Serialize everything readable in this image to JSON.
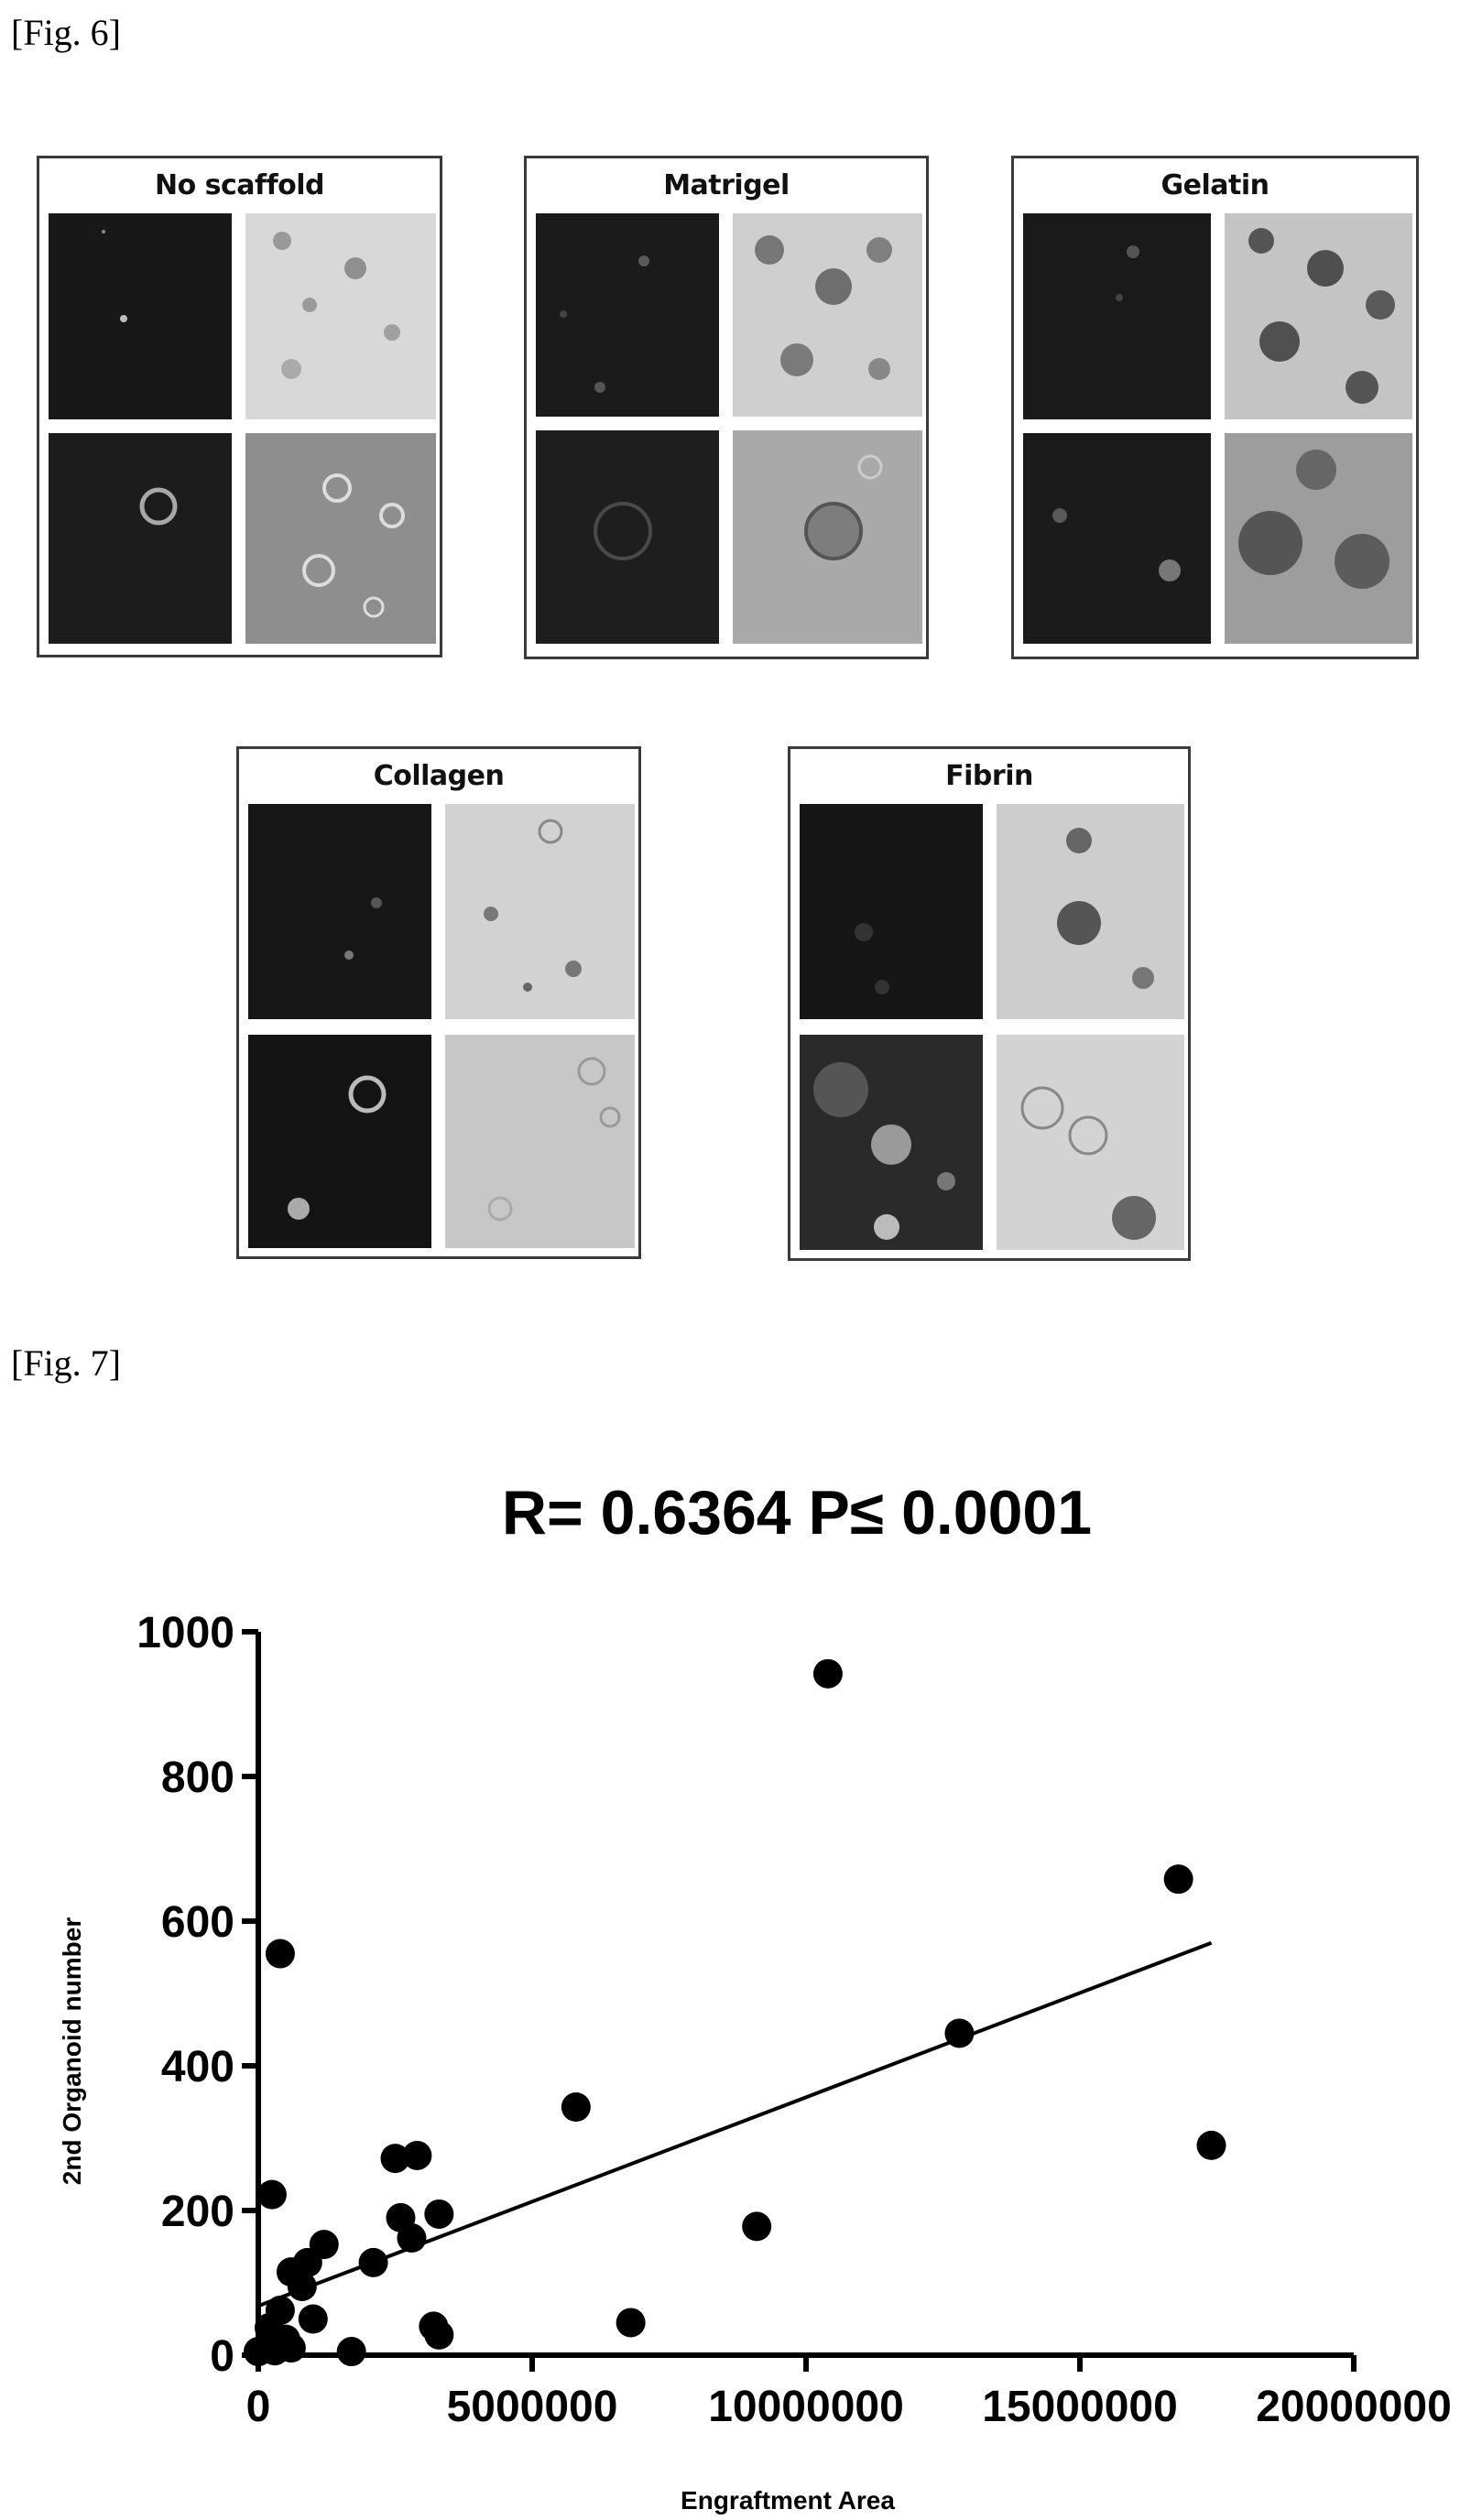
{
  "fig6": {
    "label": "[Fig. 6]",
    "panels": [
      {
        "title": "No scaffold"
      },
      {
        "title": "Matrigel"
      },
      {
        "title": "Gelatin"
      },
      {
        "title": "Collagen"
      },
      {
        "title": "Fibrin"
      }
    ]
  },
  "fig7": {
    "label": "[Fig. 7]"
  },
  "chart_data": {
    "type": "scatter",
    "title": "R= 0.6364  P≤ 0.0001",
    "xlabel": "Engraftment Area",
    "ylabel": "2nd Organoid number",
    "xlim": [
      0,
      20000000
    ],
    "ylim": [
      0,
      1000
    ],
    "xticks": [
      0,
      5000000,
      10000000,
      15000000,
      20000000
    ],
    "yticks": [
      0,
      200,
      400,
      600,
      800,
      1000
    ],
    "grid": false,
    "points": [
      {
        "x": 10400000,
        "y": 942
      },
      {
        "x": 16800000,
        "y": 658
      },
      {
        "x": 400000,
        "y": 555
      },
      {
        "x": 12800000,
        "y": 445
      },
      {
        "x": 5800000,
        "y": 343
      },
      {
        "x": 17400000,
        "y": 290
      },
      {
        "x": 2500000,
        "y": 272
      },
      {
        "x": 2900000,
        "y": 276
      },
      {
        "x": 250000,
        "y": 222
      },
      {
        "x": 2600000,
        "y": 190
      },
      {
        "x": 3300000,
        "y": 195
      },
      {
        "x": 2800000,
        "y": 162
      },
      {
        "x": 9100000,
        "y": 178
      },
      {
        "x": 1200000,
        "y": 153
      },
      {
        "x": 900000,
        "y": 128
      },
      {
        "x": 2100000,
        "y": 128
      },
      {
        "x": 600000,
        "y": 115
      },
      {
        "x": 800000,
        "y": 95
      },
      {
        "x": 400000,
        "y": 62
      },
      {
        "x": 1000000,
        "y": 50
      },
      {
        "x": 3200000,
        "y": 40
      },
      {
        "x": 6800000,
        "y": 45
      },
      {
        "x": 3300000,
        "y": 28
      },
      {
        "x": 200000,
        "y": 38
      },
      {
        "x": 500000,
        "y": 22
      },
      {
        "x": 600000,
        "y": 10
      },
      {
        "x": 1700000,
        "y": 5
      },
      {
        "x": 0,
        "y": 5
      },
      {
        "x": 300000,
        "y": 6
      }
    ],
    "fit_line": {
      "x": [
        0,
        17400000
      ],
      "y": [
        68,
        570
      ]
    }
  }
}
